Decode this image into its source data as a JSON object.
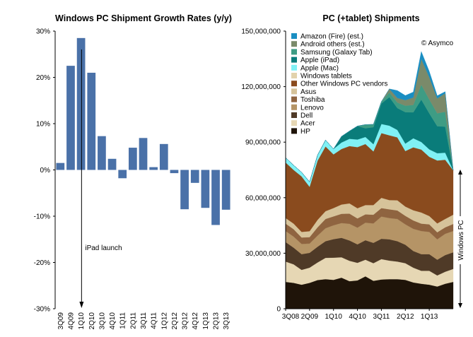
{
  "colors": {
    "growth_bar": "#4A71A8",
    "axis": "#000000",
    "hp": "#1F1409",
    "acer": "#E6D7B4",
    "dell": "#4F3A27",
    "lenovo": "#B59466",
    "toshiba": "#8F6440",
    "asus": "#D6C39A",
    "other_windows": "#8A4B1E",
    "windows_tablets": "#E2D2AC",
    "apple_mac": "#80F1F5",
    "apple_ipad": "#0A7C7A",
    "samsung": "#3E9C84",
    "android": "#7A8A6A",
    "amazon": "#1A8EC2"
  },
  "chart_data": [
    {
      "type": "bar",
      "title": "Windows PC Shipment Growth Rates (y/y)",
      "categories": [
        "3Q09",
        "4Q09",
        "1Q10",
        "2Q10",
        "3Q10",
        "4Q10",
        "1Q11",
        "2Q11",
        "3Q11",
        "4Q11",
        "1Q12",
        "2Q12",
        "3Q12",
        "4Q12",
        "1Q13",
        "2Q13",
        "3Q13"
      ],
      "quarters": [
        "3Q09",
        "4Q09",
        "1Q10",
        "2Q10",
        "3Q10",
        "4Q10",
        "1Q11",
        "2Q11",
        "3Q11",
        "4Q11",
        "1Q12",
        "2Q12",
        "3Q12",
        "4Q12",
        "1Q13",
        "2Q13",
        "3Q13"
      ],
      "values": [
        1.5,
        22.5,
        28.5,
        21.0,
        7.3,
        2.4,
        -1.8,
        4.8,
        6.9,
        0.6,
        5.6,
        -0.7,
        -8.5,
        -2.8,
        -8.2,
        -11.9,
        -8.6
      ],
      "yticks": [
        "30%",
        "20%",
        "10%",
        "0%",
        "-10%",
        "-20%",
        "-30%"
      ],
      "ylim": [
        -30,
        30
      ],
      "ystep": 10,
      "annotation": {
        "label": "iPad launch",
        "position": 2.55
      },
      "xlabel": "",
      "ylabel": ""
    },
    {
      "type": "area",
      "title": "PC (+tablet) Shipments",
      "credit": "© Asymco",
      "side_label": "Windows PC",
      "ylim": [
        0,
        150000000
      ],
      "ystep": 30000000,
      "yticks": [
        "150,000,000",
        "120,000,000",
        "90,000,000",
        "60,000,000",
        "30,000,000",
        "0"
      ],
      "xticks": [
        {
          "label": "3Q08",
          "index": 0
        },
        {
          "label": "2Q09",
          "index": 3
        },
        {
          "label": "1Q10",
          "index": 6
        },
        {
          "label": "4Q10",
          "index": 9
        },
        {
          "label": "3Q11",
          "index": 12
        },
        {
          "label": "2Q12",
          "index": 15
        },
        {
          "label": "1Q13",
          "index": 18
        }
      ],
      "stack_order": [
        "HP",
        "Acer",
        "Dell",
        "Lenovo",
        "Toshiba",
        "Asus",
        "Other Windows PC vendors",
        "Windows tablets",
        "Apple (Mac)",
        "Apple (iPad)",
        "Samsung (Galaxy Tab)",
        "Android others (est.)",
        "Amazon (Fire) (est.)"
      ],
      "legend": [
        {
          "key": "amazon",
          "label": "Amazon (Fire) (est.)"
        },
        {
          "key": "android",
          "label": "Android others (est.)"
        },
        {
          "key": "samsung",
          "label": "Samsung (Galaxy Tab)"
        },
        {
          "key": "apple_ipad",
          "label": "Apple (iPad)"
        },
        {
          "key": "apple_mac",
          "label": "Apple (Mac)"
        },
        {
          "key": "windows_tablets",
          "label": "Windows tablets"
        },
        {
          "key": "other_windows",
          "label": "Other Windows PC vendors"
        },
        {
          "key": "asus",
          "label": "Asus"
        },
        {
          "key": "toshiba",
          "label": "Toshiba"
        },
        {
          "key": "lenovo",
          "label": "Lenovo"
        },
        {
          "key": "dell",
          "label": "Dell"
        },
        {
          "key": "acer",
          "label": "Acer"
        },
        {
          "key": "hp",
          "label": "HP"
        }
      ],
      "series": [
        {
          "key": "hp",
          "name": "HP",
          "values": [
            14500000,
            14000000,
            13000000,
            14000000,
            15500000,
            16000000,
            15600000,
            16800000,
            14900000,
            15300000,
            17500000,
            15100000,
            15800000,
            16000000,
            16000000,
            15600000,
            14200000,
            13500000,
            13000000,
            12000000,
            13500000,
            14500000
          ]
        },
        {
          "key": "acer",
          "name": "Acer",
          "values": [
            11000000,
            10000000,
            8000000,
            8200000,
            9500000,
            11500000,
            12000000,
            11000000,
            11000000,
            9500000,
            9000000,
            9500000,
            11000000,
            10000000,
            9500000,
            9000000,
            8000000,
            7000000,
            7500000,
            6000000,
            6500000,
            7000000
          ]
        },
        {
          "key": "dell",
          "name": "Dell",
          "values": [
            10500000,
            9000000,
            8500000,
            8000000,
            8500000,
            9000000,
            10000000,
            10500000,
            11000000,
            10000000,
            10500000,
            11000000,
            11000000,
            11500000,
            11000000,
            10000000,
            9000000,
            9000000,
            9000000,
            8500000,
            9000000,
            9000000
          ]
        },
        {
          "key": "lenovo",
          "name": "Lenovo",
          "values": [
            6000000,
            6000000,
            5500000,
            5000000,
            6000000,
            7000000,
            7500000,
            8000000,
            9000000,
            9000000,
            9500000,
            10500000,
            12000000,
            11500000,
            12000000,
            11000000,
            12000000,
            12500000,
            12000000,
            11000000,
            11500000,
            11500000
          ]
        },
        {
          "key": "toshiba",
          "name": "Toshiba",
          "values": [
            4000000,
            4000000,
            3500000,
            3500000,
            4500000,
            5000000,
            4800000,
            5000000,
            5500000,
            5000000,
            4500000,
            4700000,
            4600000,
            4700000,
            4600000,
            4600000,
            4500000,
            4000000,
            4100000,
            3800000,
            3500000,
            3800000
          ]
        },
        {
          "key": "asus",
          "name": "Asus",
          "values": [
            3000000,
            3000000,
            3000000,
            3200000,
            4000000,
            4200000,
            4500000,
            5000000,
            5500000,
            5500000,
            5000000,
            5200000,
            5500000,
            5000000,
            5500000,
            5000000,
            5500000,
            6000000,
            4500000,
            4800000,
            4500000,
            5000000
          ]
        },
        {
          "key": "other_windows",
          "name": "Other Windows PC vendors",
          "values": [
            30000000,
            29000000,
            30000000,
            24000000,
            32000000,
            35000000,
            29000000,
            30000000,
            31000000,
            33000000,
            33000000,
            29000000,
            35000000,
            35000000,
            34000000,
            30000000,
            34000000,
            34000000,
            32000000,
            34000000,
            32000000,
            24000000
          ]
        },
        {
          "key": "windows_tablets",
          "name": "Windows tablets",
          "values": [
            0,
            0,
            0,
            0,
            0,
            0,
            0,
            0,
            0,
            0,
            0,
            0,
            0,
            0,
            0,
            0,
            0,
            0,
            0,
            0,
            0,
            0
          ]
        },
        {
          "key": "apple_mac",
          "name": "Apple (Mac)",
          "values": [
            2600000,
            2500000,
            2200000,
            2600000,
            3000000,
            3400000,
            2900000,
            3500000,
            3900000,
            4100000,
            3800000,
            3900000,
            4900000,
            5200000,
            4000000,
            4000000,
            4900000,
            4100000,
            4000000,
            3900000,
            3800000,
            0
          ]
        },
        {
          "key": "apple_ipad",
          "name": "Apple (iPad)",
          "values": [
            0,
            0,
            0,
            0,
            0,
            0,
            0,
            3300000,
            4200000,
            7300000,
            4700000,
            9200000,
            11100000,
            15400000,
            11800000,
            17000000,
            14000000,
            22900000,
            19500000,
            14600000,
            14100000,
            0
          ]
        },
        {
          "key": "samsung",
          "name": "Samsung (Galaxy Tab)",
          "values": [
            0,
            0,
            0,
            0,
            0,
            0,
            0,
            0,
            0,
            0,
            2000000,
            1500000,
            1000000,
            2500000,
            3000000,
            3500000,
            4000000,
            8000000,
            7500000,
            7000000,
            8000000,
            0
          ]
        },
        {
          "key": "android",
          "name": "Android others (est.)",
          "values": [
            0,
            0,
            0,
            0,
            0,
            0,
            0,
            0,
            0,
            0,
            0,
            0,
            0,
            2000000,
            2500000,
            3000000,
            4000000,
            14000000,
            12000000,
            8000000,
            10000000,
            0
          ]
        },
        {
          "key": "amazon",
          "name": "Amazon (Fire) (est.)",
          "values": [
            0,
            0,
            0,
            0,
            0,
            0,
            0,
            0,
            0,
            0,
            0,
            0,
            0,
            0,
            4000000,
            2500000,
            3000000,
            4000000,
            3200000,
            1500000,
            900000,
            0
          ]
        }
      ]
    }
  ]
}
